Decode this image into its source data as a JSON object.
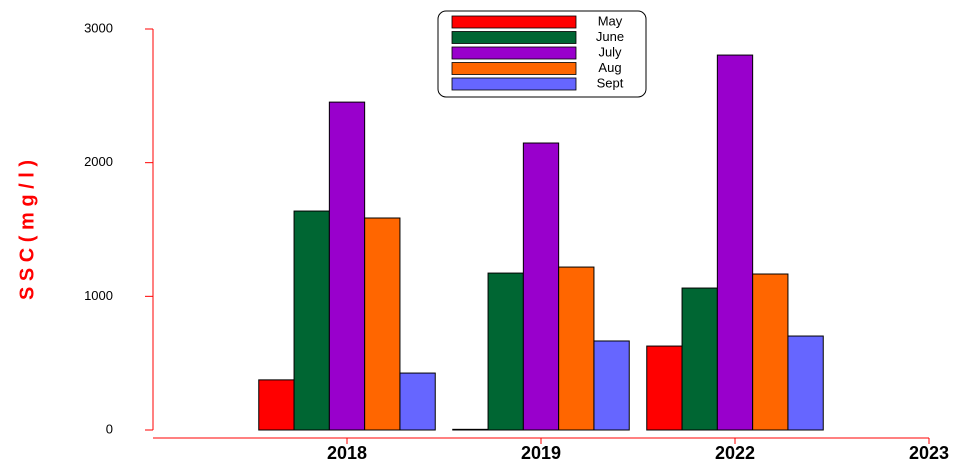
{
  "chart_data": {
    "type": "bar",
    "y_label": "S S C ( m g / l )",
    "categories": [
      "2018",
      "2019",
      "2022",
      "2023"
    ],
    "series": [
      {
        "name": "May",
        "color": "#ff0000",
        "values": [
          375,
          5,
          628,
          null
        ]
      },
      {
        "name": "June",
        "color": "#006633",
        "values": [
          1638,
          1174,
          1062,
          null
        ]
      },
      {
        "name": "July",
        "color": "#9900cc",
        "values": [
          2453,
          2147,
          2805,
          null
        ]
      },
      {
        "name": "Aug",
        "color": "#ff6600",
        "values": [
          1586,
          1219,
          1167,
          null
        ]
      },
      {
        "name": "Sept",
        "color": "#6666ff",
        "values": [
          426,
          666,
          703,
          null
        ]
      }
    ],
    "ylim": [
      0,
      3000
    ],
    "yticks": [
      0,
      1000,
      2000,
      3000
    ],
    "axis_color": "#ff0000",
    "legend": "top"
  }
}
